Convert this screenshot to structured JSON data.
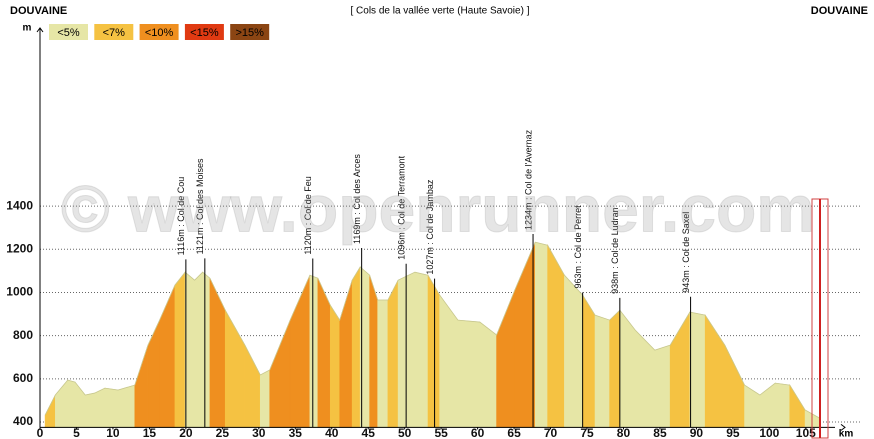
{
  "header": {
    "left": "DOUVAINE",
    "title": "[ Cols de la vallée verte (Haute Savoie) ]",
    "right": "DOUVAINE"
  },
  "watermark": "© www.openrunner.com",
  "legend": [
    {
      "label": "<5%",
      "color": "#e6e6a6"
    },
    {
      "label": "<7%",
      "color": "#f5c242"
    },
    {
      "label": "<10%",
      "color": "#ef8f1f"
    },
    {
      "label": "<15%",
      "color": "#e03a12"
    },
    {
      "label": ">15%",
      "color": "#8b4513"
    }
  ],
  "chart_data": {
    "type": "area",
    "x_label": "km",
    "y_label": "m",
    "x": [
      0.7,
      2.1,
      3.8,
      4.8,
      6.2,
      7.5,
      8.9,
      10.7,
      13.0,
      14.8,
      16.4,
      18.5,
      19.9,
      21.2,
      22.3,
      23.3,
      25.4,
      28.1,
      30.2,
      31.5,
      34.3,
      37.0,
      38.1,
      39.8,
      41.1,
      42.8,
      43.9,
      45.2,
      46.3,
      47.7,
      49.1,
      51.4,
      53.2,
      54.8,
      57.3,
      60.3,
      62.6,
      65.1,
      67.9,
      69.6,
      71.9,
      74.4,
      76.1,
      78.1,
      79.5,
      81.6,
      84.3,
      86.4,
      89.1,
      91.2,
      93.9,
      96.6,
      98.7,
      100.8,
      102.8,
      104.9,
      106.9
    ],
    "y": [
      432,
      525,
      594,
      585,
      525,
      534,
      557,
      548,
      571,
      756,
      872,
      1034,
      1094,
      1057,
      1094,
      1066,
      918,
      756,
      618,
      641,
      872,
      1080,
      1066,
      941,
      872,
      1057,
      1118,
      1080,
      965,
      965,
      1057,
      1094,
      1080,
      988,
      872,
      863,
      803,
      1011,
      1233,
      1219,
      1080,
      988,
      895,
      872,
      918,
      826,
      733,
      756,
      909,
      895,
      756,
      571,
      525,
      580,
      571,
      456,
      418
    ],
    "segment_colors": [
      "#f5c242",
      "#e6e6a6",
      "#e6e6a6",
      "#e6e6a6",
      "#e6e6a6",
      "#e6e6a6",
      "#e6e6a6",
      "#e6e6a6",
      "#ef8f1f",
      "#ef8f1f",
      "#ef8f1f",
      "#f5c242",
      "#e6e6a6",
      "#e6e6a6",
      "#e6e6a6",
      "#ef8f1f",
      "#f5c242",
      "#f5c242",
      "#e6e6a6",
      "#ef8f1f",
      "#ef8f1f",
      "#e6e6a6",
      "#ef8f1f",
      "#f5c242",
      "#ef8f1f",
      "#f5c242",
      "#e6e6a6",
      "#ef8f1f",
      "#e6e6a6",
      "#f5c242",
      "#e6e6a6",
      "#e6e6a6",
      "#f5c242",
      "#e6e6a6",
      "#e6e6a6",
      "#e6e6a6",
      "#ef8f1f",
      "#ef8f1f",
      "#e6e6a6",
      "#f5c242",
      "#e6e6a6",
      "#f5c242",
      "#e6e6a6",
      "#f5c242",
      "#e6e6a6",
      "#e6e6a6",
      "#e6e6a6",
      "#f5c242",
      "#e6e6a6",
      "#f5c242",
      "#f5c242",
      "#e6e6a6",
      "#e6e6a6",
      "#e6e6a6",
      "#f5c242",
      "#e6e6a6"
    ],
    "xlim": [
      0,
      109
    ],
    "ylim": [
      375,
      2225
    ],
    "xticks": [
      0,
      5,
      10,
      15,
      20,
      25,
      30,
      35,
      40,
      45,
      50,
      55,
      60,
      65,
      70,
      75,
      80,
      85,
      90,
      95,
      100,
      105
    ],
    "yticks": [
      400,
      600,
      800,
      1000,
      1200,
      1400
    ],
    "grid": true,
    "annotations": [
      {
        "x": 20.0,
        "value": 1116,
        "label": "1116m : Col de Cou"
      },
      {
        "x": 22.6,
        "value": 1121,
        "label": "1121m : Col des Moises"
      },
      {
        "x": 37.4,
        "value": 1120,
        "label": "1120m : Col de Feu"
      },
      {
        "x": 44.1,
        "value": 1169,
        "label": "1169m : Col des Arces"
      },
      {
        "x": 50.2,
        "value": 1096,
        "label": "1096m : Col de Terramont"
      },
      {
        "x": 54.1,
        "value": 1027,
        "label": "1027m : Col de Jambaz"
      },
      {
        "x": 67.6,
        "value": 1234,
        "label": "1234m : Col de l'Avernaz"
      },
      {
        "x": 74.4,
        "value": 963,
        "label": "963m : Col de Perret"
      },
      {
        "x": 79.5,
        "value": 938,
        "label": "938m : Col de Ludran"
      },
      {
        "x": 89.2,
        "value": 943,
        "label": "943m : Col de Saxel"
      }
    ]
  }
}
